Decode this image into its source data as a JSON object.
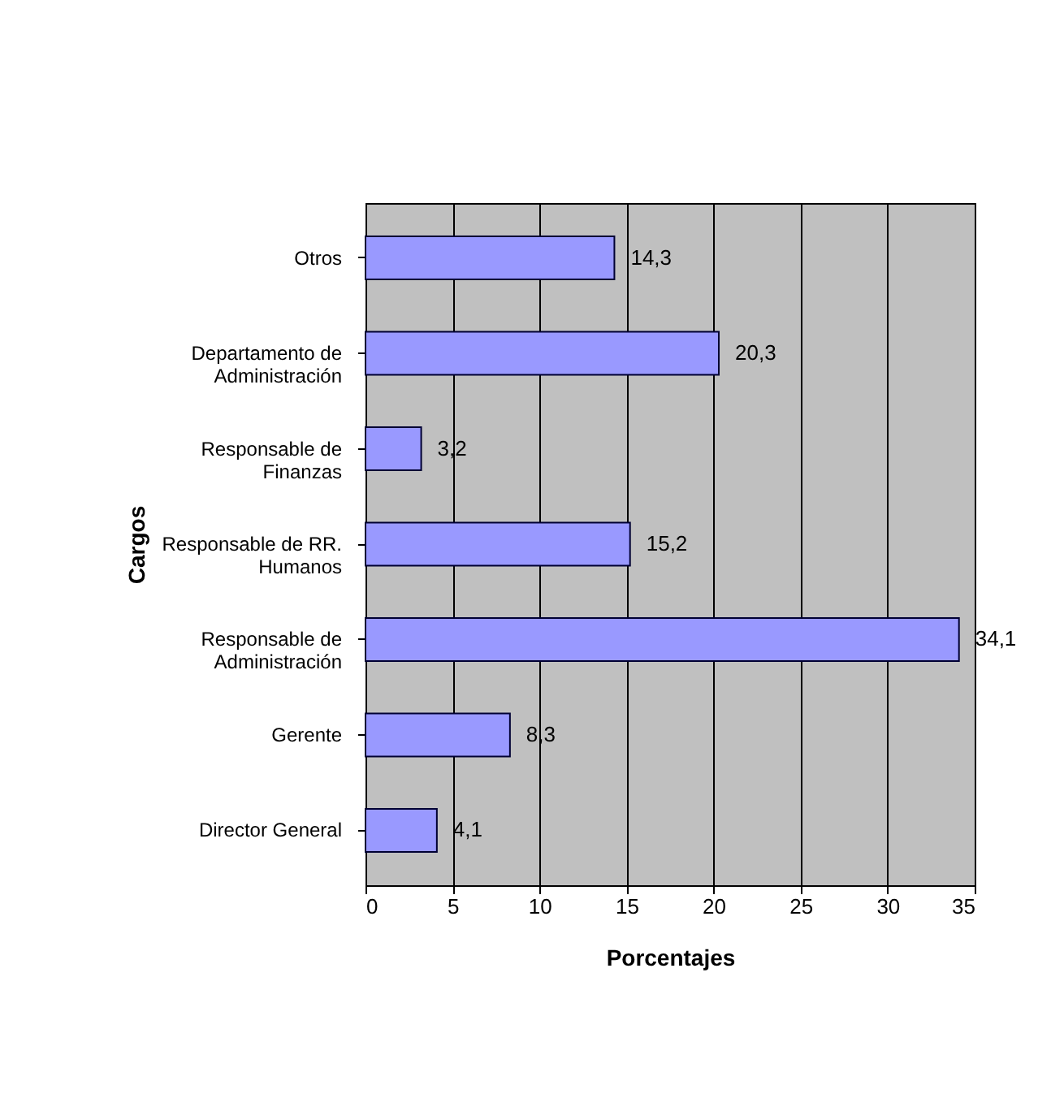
{
  "chart_data": {
    "type": "bar",
    "orientation": "horizontal",
    "xlabel": "Porcentajes",
    "ylabel": "Cargos",
    "categories": [
      "Otros",
      "Departamento de Administración",
      "Responsable de Finanzas",
      "Responsable de RR. Humanos",
      "Responsable de Administración",
      "Gerente",
      "Director General"
    ],
    "values": [
      14.3,
      20.3,
      3.2,
      15.2,
      34.1,
      8.3,
      4.1
    ],
    "value_labels": [
      "14,3",
      "20,3",
      "3,2",
      "15,2",
      "34,1",
      "8,3",
      "4,1"
    ],
    "color": "#9999ff",
    "xlim": [
      0,
      35
    ],
    "xticks": [
      0,
      5,
      10,
      15,
      20,
      25,
      30,
      35
    ],
    "grid": "x"
  }
}
